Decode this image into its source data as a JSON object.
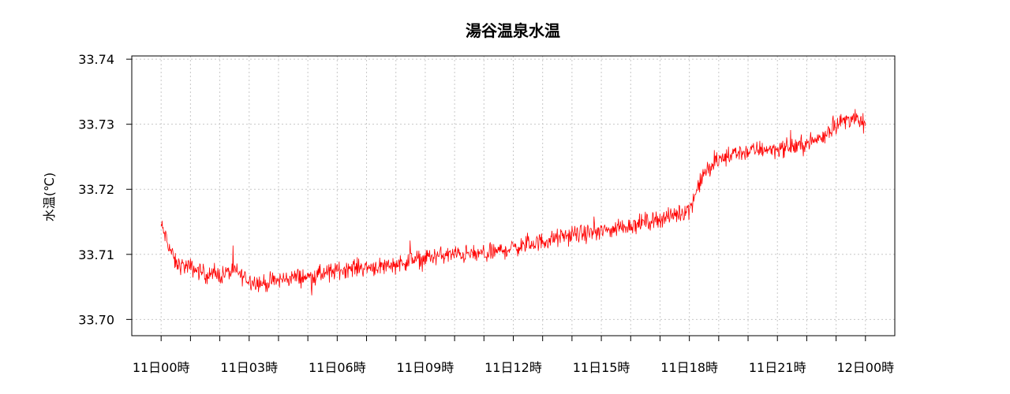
{
  "chart_data": {
    "type": "line",
    "title": "湯谷温泉水温",
    "ylabel": "水温(℃)",
    "xlabel": "",
    "ylim": [
      33.6975,
      33.7405
    ],
    "y_ticks": [
      "33.70",
      "33.71",
      "33.72",
      "33.73",
      "33.74"
    ],
    "y_tick_values": [
      33.7,
      33.71,
      33.72,
      33.73,
      33.74
    ],
    "x_range_hours": [
      -1.0,
      25.0
    ],
    "x_tick_labels": [
      "11日00時",
      "11日03時",
      "11日06時",
      "11日09時",
      "11日12時",
      "11日15時",
      "11日18時",
      "11日21時",
      "12日00時"
    ],
    "x_tick_hours": [
      0,
      3,
      6,
      9,
      12,
      15,
      18,
      21,
      24
    ],
    "x_minor_tick_hours": [
      0,
      1,
      2,
      3,
      4,
      5,
      6,
      7,
      8,
      9,
      10,
      11,
      12,
      13,
      14,
      15,
      16,
      17,
      18,
      19,
      20,
      21,
      22,
      23,
      24
    ],
    "grid": true,
    "series": [
      {
        "color": "#ff0000",
        "x": [
          0,
          0.5,
          1,
          1.5,
          2,
          2.5,
          3,
          3.5,
          4,
          4.5,
          5,
          5.5,
          6,
          6.5,
          7,
          7.5,
          8,
          8.5,
          9,
          9.5,
          10,
          10.5,
          11,
          11.5,
          12,
          12.5,
          13,
          13.5,
          14,
          14.5,
          15,
          15.5,
          16,
          16.5,
          17,
          17.5,
          18,
          18.5,
          19,
          19.5,
          20,
          20.5,
          21,
          21.5,
          22,
          22.5,
          23,
          23.5,
          24
        ],
        "y": [
          33.7145,
          33.7085,
          33.708,
          33.707,
          33.7068,
          33.7075,
          33.706,
          33.7055,
          33.706,
          33.7065,
          33.7065,
          33.707,
          33.7075,
          33.708,
          33.708,
          33.7082,
          33.7085,
          33.709,
          33.7095,
          33.7098,
          33.71,
          33.71,
          33.71,
          33.7105,
          33.711,
          33.7115,
          33.712,
          33.7125,
          33.713,
          33.7132,
          33.7135,
          33.714,
          33.7145,
          33.715,
          33.7155,
          33.716,
          33.717,
          33.7225,
          33.7245,
          33.7255,
          33.7258,
          33.7262,
          33.7262,
          33.7265,
          33.727,
          33.728,
          33.73,
          33.731,
          33.73
        ],
        "noise": 0.0015
      }
    ]
  }
}
